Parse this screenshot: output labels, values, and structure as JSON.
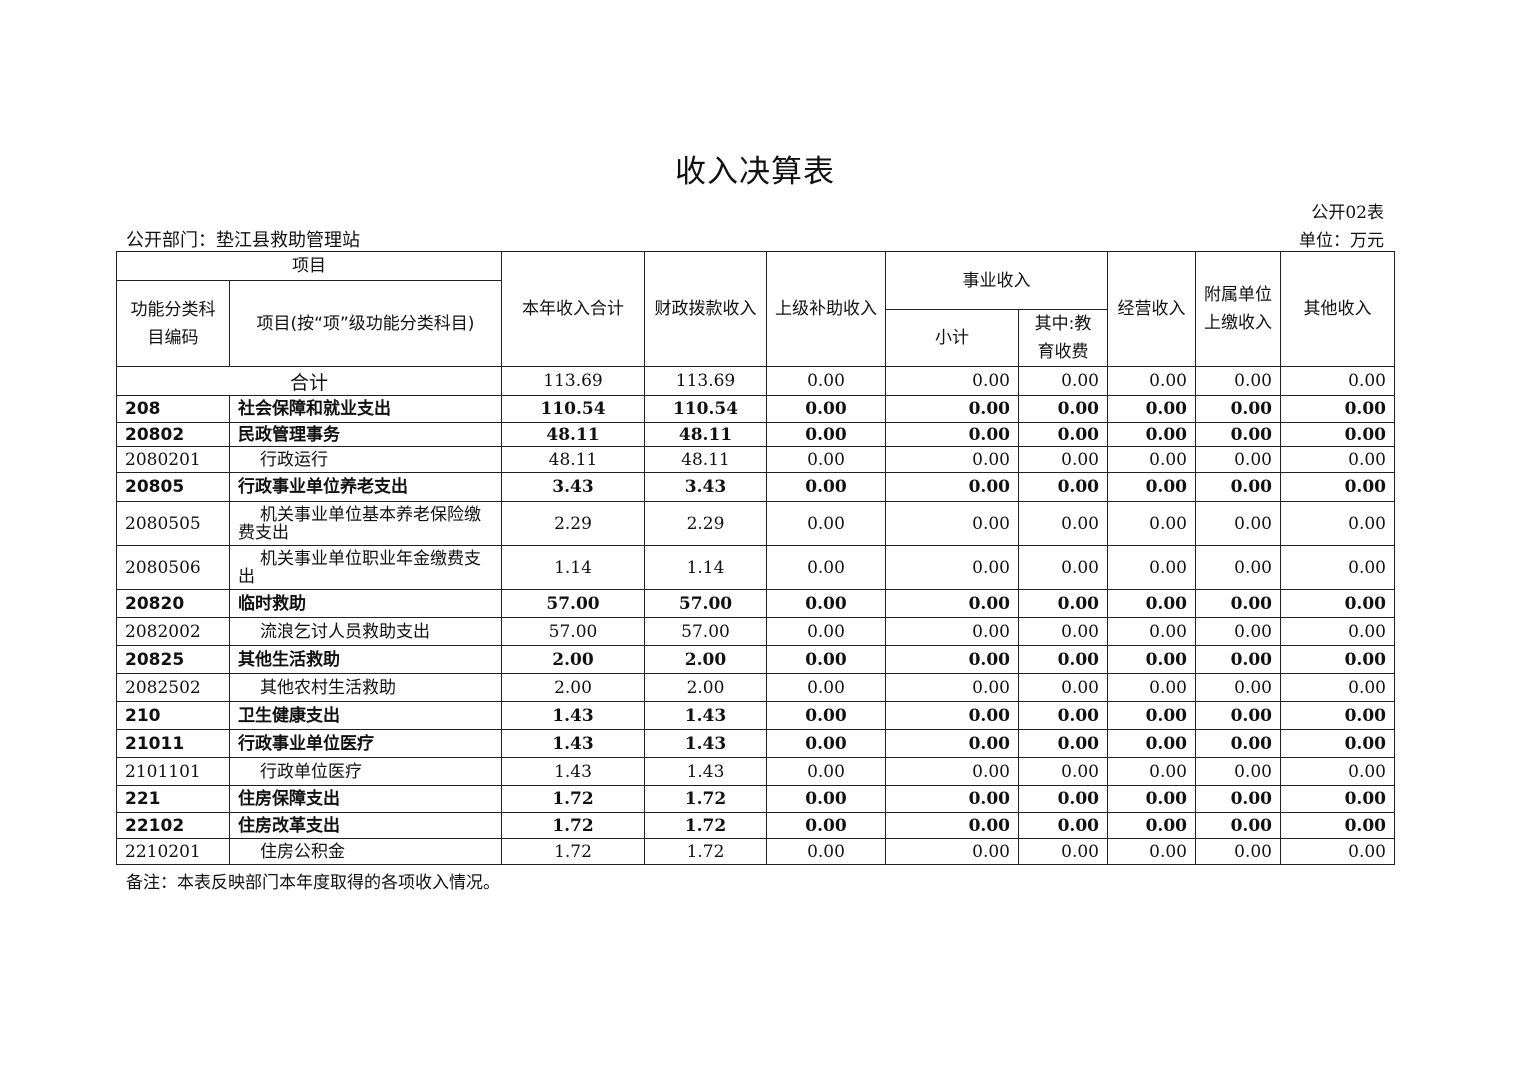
{
  "title": "收入决算表",
  "form_no": "公开02表",
  "unit": "单位：万元",
  "department": "公开部门：垫江县救助管理站",
  "headers": {
    "project": "项目",
    "code": "功能分类科目编码",
    "name": "项目(按“项”级功能分类科目)",
    "total": "本年收入合计",
    "fiscal": "财政拨款收入",
    "superior": "上级补助收入",
    "business": "事业收入",
    "subtotal": "小计",
    "education": "其中:教育收费",
    "operating": "经营收入",
    "affiliated": "附属单位上缴收入",
    "other": "其他收入"
  },
  "total_row": {
    "label": "合计",
    "values": [
      "113.69",
      "113.69",
      "0.00",
      "0.00",
      "0.00",
      "0.00",
      "0.00",
      "0.00"
    ]
  },
  "rows": [
    {
      "code": "208",
      "name": "社会保障和就业支出",
      "bold": true,
      "values": [
        "110.54",
        "110.54",
        "0.00",
        "0.00",
        "0.00",
        "0.00",
        "0.00",
        "0.00"
      ]
    },
    {
      "code": "20802",
      "name": "民政管理事务",
      "bold": true,
      "values": [
        "48.11",
        "48.11",
        "0.00",
        "0.00",
        "0.00",
        "0.00",
        "0.00",
        "0.00"
      ]
    },
    {
      "code": "2080201",
      "name": "行政运行",
      "bold": false,
      "values": [
        "48.11",
        "48.11",
        "0.00",
        "0.00",
        "0.00",
        "0.00",
        "0.00",
        "0.00"
      ]
    },
    {
      "code": "20805",
      "name": "行政事业单位养老支出",
      "bold": true,
      "values": [
        "3.43",
        "3.43",
        "0.00",
        "0.00",
        "0.00",
        "0.00",
        "0.00",
        "0.00"
      ]
    },
    {
      "code": "2080505",
      "name": "机关事业单位基本养老保险缴费支出",
      "bold": false,
      "values": [
        "2.29",
        "2.29",
        "0.00",
        "0.00",
        "0.00",
        "0.00",
        "0.00",
        "0.00"
      ]
    },
    {
      "code": "2080506",
      "name": "机关事业单位职业年金缴费支出",
      "bold": false,
      "values": [
        "1.14",
        "1.14",
        "0.00",
        "0.00",
        "0.00",
        "0.00",
        "0.00",
        "0.00"
      ]
    },
    {
      "code": "20820",
      "name": "临时救助",
      "bold": true,
      "values": [
        "57.00",
        "57.00",
        "0.00",
        "0.00",
        "0.00",
        "0.00",
        "0.00",
        "0.00"
      ]
    },
    {
      "code": "2082002",
      "name": "流浪乞讨人员救助支出",
      "bold": false,
      "values": [
        "57.00",
        "57.00",
        "0.00",
        "0.00",
        "0.00",
        "0.00",
        "0.00",
        "0.00"
      ]
    },
    {
      "code": "20825",
      "name": "其他生活救助",
      "bold": true,
      "values": [
        "2.00",
        "2.00",
        "0.00",
        "0.00",
        "0.00",
        "0.00",
        "0.00",
        "0.00"
      ]
    },
    {
      "code": "2082502",
      "name": "其他农村生活救助",
      "bold": false,
      "values": [
        "2.00",
        "2.00",
        "0.00",
        "0.00",
        "0.00",
        "0.00",
        "0.00",
        "0.00"
      ]
    },
    {
      "code": "210",
      "name": "卫生健康支出",
      "bold": true,
      "values": [
        "1.43",
        "1.43",
        "0.00",
        "0.00",
        "0.00",
        "0.00",
        "0.00",
        "0.00"
      ]
    },
    {
      "code": "21011",
      "name": "行政事业单位医疗",
      "bold": true,
      "values": [
        "1.43",
        "1.43",
        "0.00",
        "0.00",
        "0.00",
        "0.00",
        "0.00",
        "0.00"
      ]
    },
    {
      "code": "2101101",
      "name": "行政单位医疗",
      "bold": false,
      "values": [
        "1.43",
        "1.43",
        "0.00",
        "0.00",
        "0.00",
        "0.00",
        "0.00",
        "0.00"
      ]
    },
    {
      "code": "221",
      "name": "住房保障支出",
      "bold": true,
      "values": [
        "1.72",
        "1.72",
        "0.00",
        "0.00",
        "0.00",
        "0.00",
        "0.00",
        "0.00"
      ]
    },
    {
      "code": "22102",
      "name": "住房改革支出",
      "bold": true,
      "values": [
        "1.72",
        "1.72",
        "0.00",
        "0.00",
        "0.00",
        "0.00",
        "0.00",
        "0.00"
      ]
    },
    {
      "code": "2210201",
      "name": "住房公积金",
      "bold": false,
      "values": [
        "1.72",
        "1.72",
        "0.00",
        "0.00",
        "0.00",
        "0.00",
        "0.00",
        "0.00"
      ]
    }
  ],
  "note": "备注：本表反映部门本年度取得的各项收入情况。"
}
